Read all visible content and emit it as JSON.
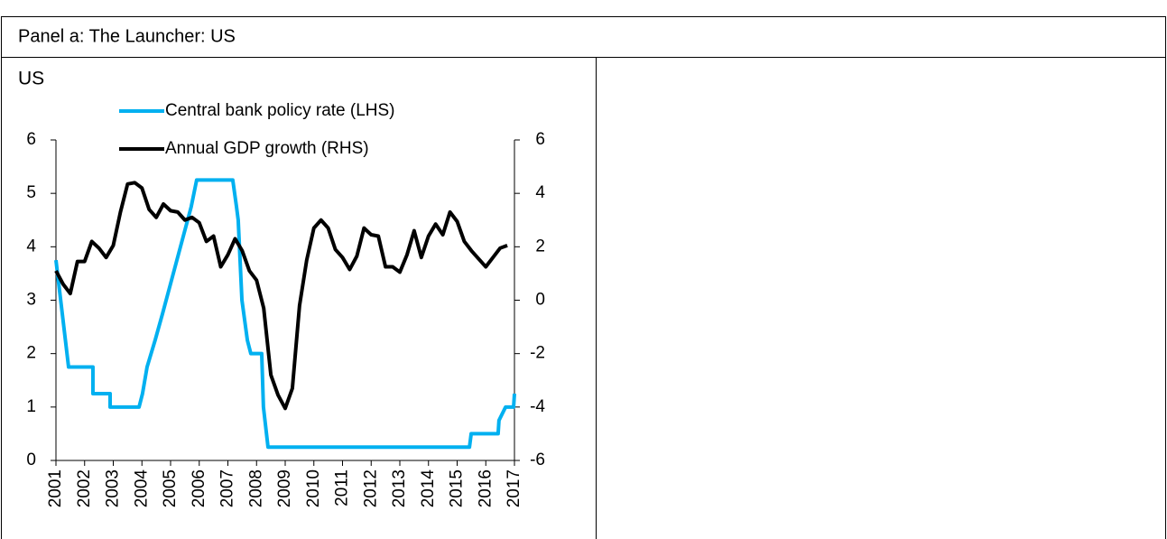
{
  "panel": {
    "title": "Panel a: The Launcher: US"
  },
  "chart_data": {
    "type": "line",
    "title": "US",
    "xlim": [
      2001,
      2017
    ],
    "xticks": [
      2001,
      2002,
      2003,
      2004,
      2005,
      2006,
      2007,
      2008,
      2009,
      2010,
      2011,
      2012,
      2013,
      2014,
      2015,
      2016,
      2017
    ],
    "ylim": [
      0,
      6
    ],
    "yticks": [
      0,
      1,
      2,
      3,
      4,
      5,
      6
    ],
    "y2lim": [
      -6,
      6
    ],
    "y2ticks": [
      -6,
      -4,
      -2,
      0,
      2,
      4,
      6
    ],
    "series": [
      {
        "name": "Central bank policy rate (LHS)",
        "color": "#00b0f0",
        "axis": "y",
        "x": [
          2001.0,
          2001.44,
          2002.29,
          2002.29,
          2002.89,
          2002.89,
          2003.9,
          2004.02,
          2004.18,
          2004.46,
          2004.72,
          2004.97,
          2005.22,
          2005.47,
          2005.72,
          2005.91,
          2007.17,
          2007.3,
          2007.36,
          2007.49,
          2007.68,
          2007.8,
          2008.18,
          2008.24,
          2008.4,
          2015.43,
          2015.49,
          2016.43,
          2016.46,
          2016.69,
          2016.97,
          2017.0
        ],
        "values": [
          3.75,
          1.75,
          1.75,
          1.25,
          1.25,
          1.0,
          1.0,
          1.25,
          1.75,
          2.25,
          2.75,
          3.25,
          3.75,
          4.25,
          4.75,
          5.25,
          5.25,
          4.75,
          4.5,
          3.0,
          2.25,
          2.0,
          2.0,
          1.0,
          0.25,
          0.25,
          0.5,
          0.5,
          0.75,
          1.0,
          1.0,
          1.25
        ]
      },
      {
        "name": "Annual GDP growth (RHS)",
        "color": "#000000",
        "axis": "y2",
        "x": [
          2001.0,
          2001.25,
          2001.5,
          2001.75,
          2002.0,
          2002.25,
          2002.5,
          2002.75,
          2003.0,
          2003.25,
          2003.5,
          2003.75,
          2004.0,
          2004.25,
          2004.5,
          2004.75,
          2005.0,
          2005.25,
          2005.5,
          2005.75,
          2006.0,
          2006.25,
          2006.5,
          2006.75,
          2007.0,
          2007.25,
          2007.5,
          2007.75,
          2008.0,
          2008.25,
          2008.5,
          2008.75,
          2009.0,
          2009.25,
          2009.5,
          2009.75,
          2010.0,
          2010.25,
          2010.5,
          2010.75,
          2011.0,
          2011.25,
          2011.5,
          2011.75,
          2012.0,
          2012.25,
          2012.5,
          2012.75,
          2013.0,
          2013.25,
          2013.5,
          2013.75,
          2014.0,
          2014.25,
          2014.5,
          2014.75,
          2015.0,
          2015.25,
          2015.5,
          2015.75,
          2016.0,
          2016.25,
          2016.5,
          2016.75
        ],
        "values": [
          1.1,
          0.6,
          0.25,
          1.45,
          1.45,
          2.2,
          1.95,
          1.6,
          2.05,
          3.3,
          4.35,
          4.4,
          4.2,
          3.4,
          3.1,
          3.6,
          3.35,
          3.3,
          3.0,
          3.1,
          2.9,
          2.2,
          2.4,
          1.25,
          1.7,
          2.3,
          1.85,
          1.1,
          0.75,
          -0.3,
          -2.8,
          -3.55,
          -4.05,
          -3.3,
          -0.2,
          1.5,
          2.7,
          3.0,
          2.7,
          1.9,
          1.6,
          1.15,
          1.65,
          2.7,
          2.45,
          2.4,
          1.25,
          1.25,
          1.05,
          1.7,
          2.6,
          1.6,
          2.4,
          2.85,
          2.45,
          3.3,
          2.95,
          2.2,
          1.85,
          1.55,
          1.25,
          1.6,
          1.95,
          2.05
        ]
      }
    ]
  }
}
